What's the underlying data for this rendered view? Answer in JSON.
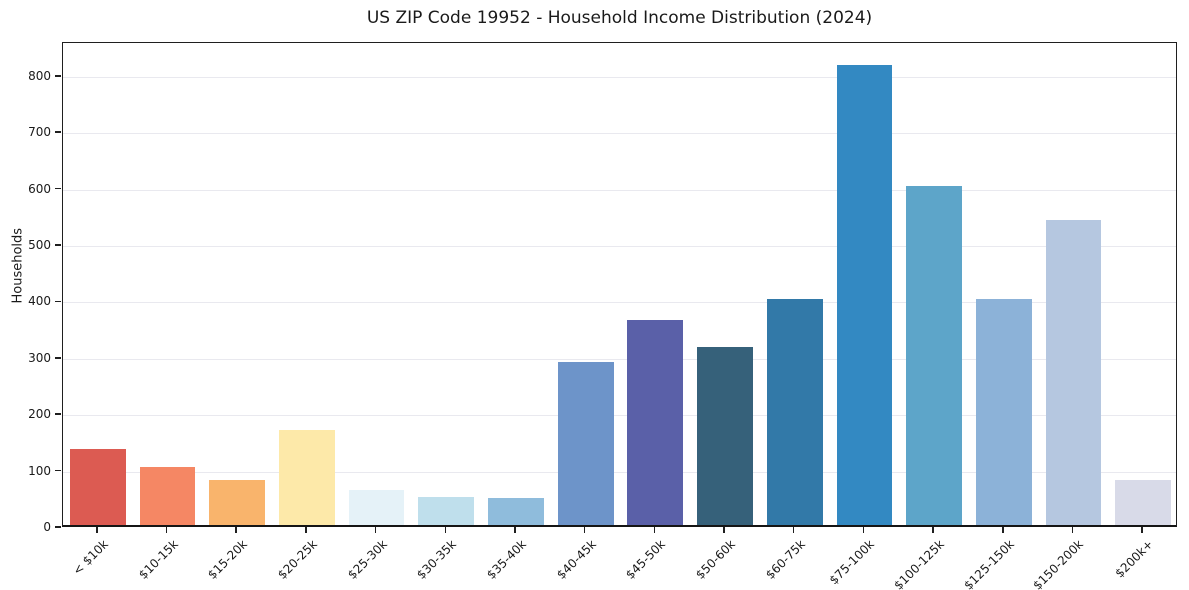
{
  "title": "US ZIP Code 19952 - Household Income Distribution (2024)",
  "chart_data": {
    "type": "bar",
    "title": "US ZIP Code 19952 - Household Income Distribution (2024)",
    "xlabel": "",
    "ylabel": "Households",
    "ylim": [
      0,
      860
    ],
    "yticks": [
      0,
      100,
      200,
      300,
      400,
      500,
      600,
      700,
      800
    ],
    "grid": true,
    "legend": false,
    "categories": [
      "< $10k",
      "$10-15k",
      "$15-20k",
      "$20-25k",
      "$25-30k",
      "$30-35k",
      "$35-40k",
      "$40-45k",
      "$45-50k",
      "$50-60k",
      "$60-75k",
      "$75-100k",
      "$100-125k",
      "$125-150k",
      "$150-200k",
      "$200k+"
    ],
    "values": [
      134,
      103,
      79,
      168,
      62,
      50,
      48,
      289,
      363,
      315,
      400,
      815,
      601,
      400,
      540,
      80
    ],
    "bar_colors": [
      "#dc5b52",
      "#f58764",
      "#f9b46c",
      "#fde9a9",
      "#e5f2f8",
      "#bfdfec",
      "#8fbcdc",
      "#6d94c9",
      "#5a60a8",
      "#36617a",
      "#3279a8",
      "#3389c2",
      "#5da5c9",
      "#8cb2d8",
      "#b5c7e0",
      "#d8dae8"
    ],
    "axis_color": "#1f1f1f",
    "grid_color": "#e9e9ef",
    "text_color": "#1a1a1a"
  }
}
